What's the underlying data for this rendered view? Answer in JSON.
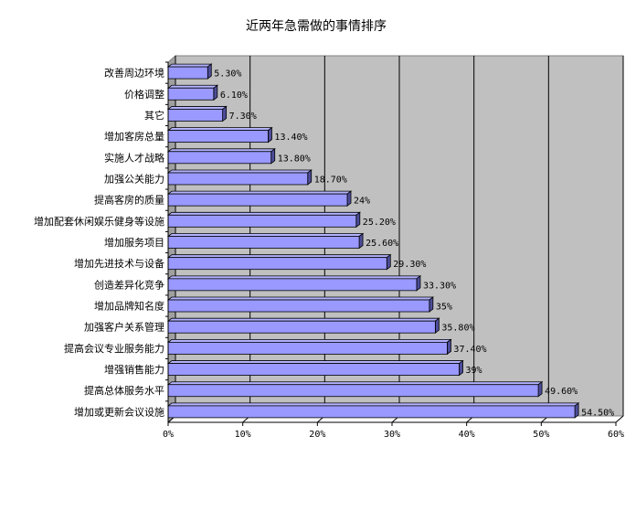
{
  "chart_data": {
    "type": "bar",
    "orientation": "horizontal",
    "title": "近两年急需做的事情排序",
    "categories": [
      "改善周边环境",
      "价格调整",
      "其它",
      "增加客房总量",
      "实施人才战略",
      "加强公关能力",
      "提高客房的质量",
      "增加配套休闲娱乐健身等设施",
      "增加服务项目",
      "增加先进技术与设备",
      "创造差异化竞争",
      "增加品牌知名度",
      "加强客户关系管理",
      "提高会议专业服务能力",
      "增强销售能力",
      "提高总体服务水平",
      "增加或更新会议设施"
    ],
    "values": [
      5.3,
      6.1,
      7.3,
      13.4,
      13.8,
      18.7,
      24,
      25.2,
      25.6,
      29.3,
      33.3,
      35,
      35.8,
      37.4,
      39,
      49.6,
      54.5
    ],
    "value_labels": [
      "5.30%",
      "6.10%",
      "7.30%",
      "13.40%",
      "13.80%",
      "18.70%",
      "24%",
      "25.20%",
      "25.60%",
      "29.30%",
      "33.30%",
      "35%",
      "35.80%",
      "37.40%",
      "39%",
      "49.60%",
      "54.50%"
    ],
    "xlim": [
      0,
      60
    ],
    "x_ticks": [
      0,
      10,
      20,
      30,
      40,
      50,
      60
    ],
    "x_tick_labels": [
      "0%",
      "10%",
      "20%",
      "30%",
      "40%",
      "50%",
      "60%"
    ],
    "grid": true,
    "legend": "none",
    "colors": {
      "bar_front": "#9999ff",
      "bar_top": "#b3b3ff",
      "bar_side": "#4d4d99",
      "plot_background": "#c0c0c0",
      "grid_line": "#000000"
    }
  }
}
